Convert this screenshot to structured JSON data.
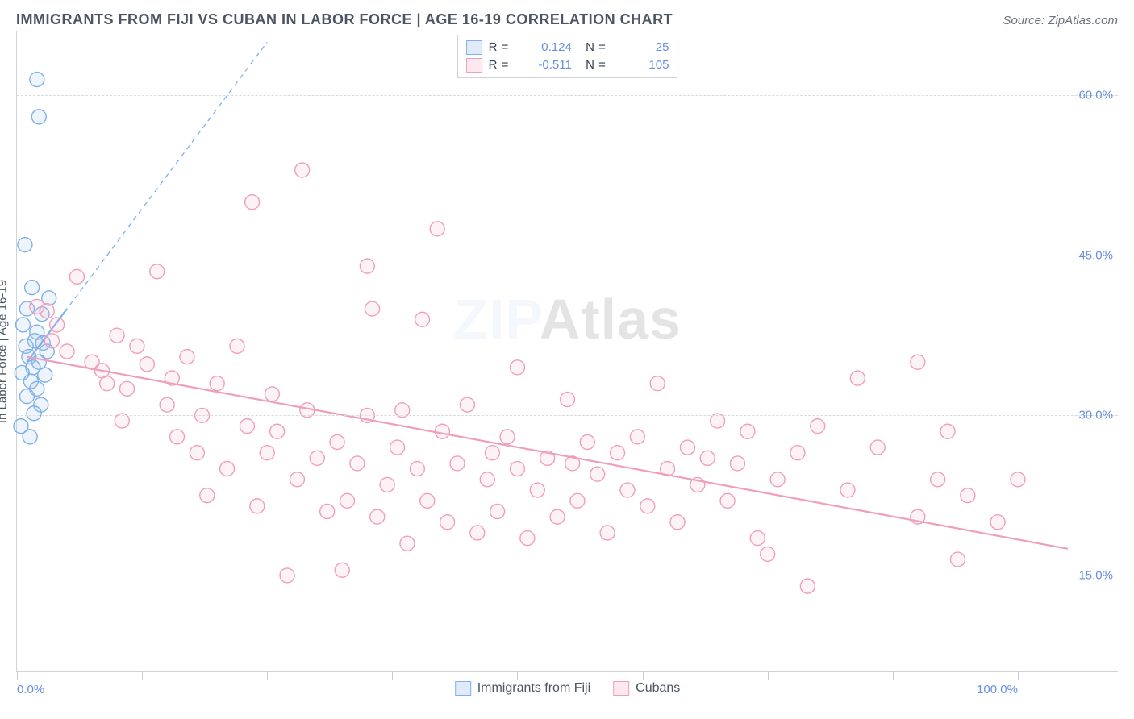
{
  "header": {
    "title": "IMMIGRANTS FROM FIJI VS CUBAN IN LABOR FORCE | AGE 16-19 CORRELATION CHART",
    "source": "Source: ZipAtlas.com"
  },
  "watermark": {
    "prefix": "ZIP",
    "suffix": "Atlas"
  },
  "chart": {
    "type": "scatter-correlation",
    "ylabel": "In Labor Force | Age 16-19",
    "xlim": [
      0,
      110
    ],
    "ylim": [
      6,
      66
    ],
    "grid_color": "#d7dbe1",
    "border_color": "#d0d4da",
    "yticks": [
      {
        "v": 60,
        "label": "60.0%"
      },
      {
        "v": 45,
        "label": "45.0%"
      },
      {
        "v": 30,
        "label": "30.0%"
      },
      {
        "v": 15,
        "label": "15.0%"
      }
    ],
    "xticks_major": [
      0,
      12.5,
      25,
      37.5,
      50,
      62.5,
      75,
      87.5,
      100
    ],
    "xtick_labels": [
      {
        "v": 0,
        "label": "0.0%",
        "align": "left"
      },
      {
        "v": 100,
        "label": "100.0%",
        "align": "right"
      }
    ],
    "marker_radius": 9,
    "series": [
      {
        "id": "fiji",
        "legend_label": "Immigrants from Fiji",
        "fill": "#9ec2ee",
        "stroke": "#7fb1e8",
        "R": "0.124",
        "N": "25",
        "trend": {
          "x1": 1,
          "y1": 35,
          "x2": 5,
          "y2": 40,
          "dash_ext_x": 25,
          "dash_ext_y": 65
        },
        "points": [
          [
            2.0,
            61.5
          ],
          [
            2.2,
            58.0
          ],
          [
            0.8,
            46.0
          ],
          [
            1.5,
            42.0
          ],
          [
            3.2,
            41.0
          ],
          [
            1.0,
            40.0
          ],
          [
            2.5,
            39.5
          ],
          [
            0.6,
            38.5
          ],
          [
            2.0,
            37.8
          ],
          [
            1.8,
            37.0
          ],
          [
            0.9,
            36.5
          ],
          [
            3.0,
            36.0
          ],
          [
            1.2,
            35.5
          ],
          [
            2.2,
            35.0
          ],
          [
            1.6,
            34.5
          ],
          [
            0.5,
            34.0
          ],
          [
            2.8,
            33.8
          ],
          [
            1.4,
            33.2
          ],
          [
            2.0,
            32.5
          ],
          [
            1.0,
            31.8
          ],
          [
            2.4,
            31.0
          ],
          [
            1.7,
            30.2
          ],
          [
            0.4,
            29.0
          ],
          [
            1.3,
            28.0
          ],
          [
            2.6,
            36.8
          ]
        ]
      },
      {
        "id": "cuban",
        "legend_label": "Cubans",
        "fill": "#f6b9cc",
        "stroke": "#ef9fb9",
        "R": "-0.511",
        "N": "105",
        "trend": {
          "x1": 1,
          "y1": 35.5,
          "x2": 105,
          "y2": 17.5
        },
        "points": [
          [
            2.0,
            40.2
          ],
          [
            3.0,
            39.8
          ],
          [
            4.0,
            38.5
          ],
          [
            3.5,
            37.0
          ],
          [
            5.0,
            36.0
          ],
          [
            6.0,
            43.0
          ],
          [
            7.5,
            35.0
          ],
          [
            8.5,
            34.2
          ],
          [
            9.0,
            33.0
          ],
          [
            10.0,
            37.5
          ],
          [
            10.5,
            29.5
          ],
          [
            11.0,
            32.5
          ],
          [
            12.0,
            36.5
          ],
          [
            13.0,
            34.8
          ],
          [
            14.0,
            43.5
          ],
          [
            15.0,
            31.0
          ],
          [
            15.5,
            33.5
          ],
          [
            16.0,
            28.0
          ],
          [
            17.0,
            35.5
          ],
          [
            18.0,
            26.5
          ],
          [
            18.5,
            30.0
          ],
          [
            19.0,
            22.5
          ],
          [
            20.0,
            33.0
          ],
          [
            21.0,
            25.0
          ],
          [
            22.0,
            36.5
          ],
          [
            23.0,
            29.0
          ],
          [
            23.5,
            50.0
          ],
          [
            24.0,
            21.5
          ],
          [
            25.0,
            26.5
          ],
          [
            25.5,
            32.0
          ],
          [
            26.0,
            28.5
          ],
          [
            27.0,
            15.0
          ],
          [
            28.0,
            24.0
          ],
          [
            28.5,
            53.0
          ],
          [
            29.0,
            30.5
          ],
          [
            30.0,
            26.0
          ],
          [
            31.0,
            21.0
          ],
          [
            32.0,
            27.5
          ],
          [
            32.5,
            15.5
          ],
          [
            33.0,
            22.0
          ],
          [
            34.0,
            25.5
          ],
          [
            35.0,
            30.0
          ],
          [
            35.0,
            44.0
          ],
          [
            35.5,
            40.0
          ],
          [
            36.0,
            20.5
          ],
          [
            37.0,
            23.5
          ],
          [
            38.0,
            27.0
          ],
          [
            38.5,
            30.5
          ],
          [
            39.0,
            18.0
          ],
          [
            40.0,
            25.0
          ],
          [
            40.5,
            39.0
          ],
          [
            41.0,
            22.0
          ],
          [
            42.0,
            47.5
          ],
          [
            42.5,
            28.5
          ],
          [
            43.0,
            20.0
          ],
          [
            44.0,
            25.5
          ],
          [
            45.0,
            31.0
          ],
          [
            46.0,
            19.0
          ],
          [
            47.0,
            24.0
          ],
          [
            47.5,
            26.5
          ],
          [
            48.0,
            21.0
          ],
          [
            49.0,
            28.0
          ],
          [
            50.0,
            34.5
          ],
          [
            50.0,
            25.0
          ],
          [
            51.0,
            18.5
          ],
          [
            52.0,
            23.0
          ],
          [
            53.0,
            26.0
          ],
          [
            54.0,
            20.5
          ],
          [
            55.0,
            31.5
          ],
          [
            55.5,
            25.5
          ],
          [
            56.0,
            22.0
          ],
          [
            57.0,
            27.5
          ],
          [
            58.0,
            24.5
          ],
          [
            59.0,
            19.0
          ],
          [
            60.0,
            26.5
          ],
          [
            61.0,
            23.0
          ],
          [
            62.0,
            28.0
          ],
          [
            63.0,
            21.5
          ],
          [
            64.0,
            33.0
          ],
          [
            65.0,
            25.0
          ],
          [
            66.0,
            20.0
          ],
          [
            67.0,
            27.0
          ],
          [
            68.0,
            23.5
          ],
          [
            69.0,
            26.0
          ],
          [
            70.0,
            29.5
          ],
          [
            71.0,
            22.0
          ],
          [
            72.0,
            25.5
          ],
          [
            73.0,
            28.5
          ],
          [
            74.0,
            18.5
          ],
          [
            75.0,
            17.0
          ],
          [
            76.0,
            24.0
          ],
          [
            78.0,
            26.5
          ],
          [
            79.0,
            14.0
          ],
          [
            80.0,
            29.0
          ],
          [
            83.0,
            23.0
          ],
          [
            86.0,
            27.0
          ],
          [
            84.0,
            33.5
          ],
          [
            90.0,
            20.5
          ],
          [
            92.0,
            24.0
          ],
          [
            93.0,
            28.5
          ],
          [
            94.0,
            16.5
          ],
          [
            95.0,
            22.5
          ],
          [
            90.0,
            35.0
          ],
          [
            100.0,
            24.0
          ],
          [
            98.0,
            20.0
          ]
        ]
      }
    ]
  }
}
